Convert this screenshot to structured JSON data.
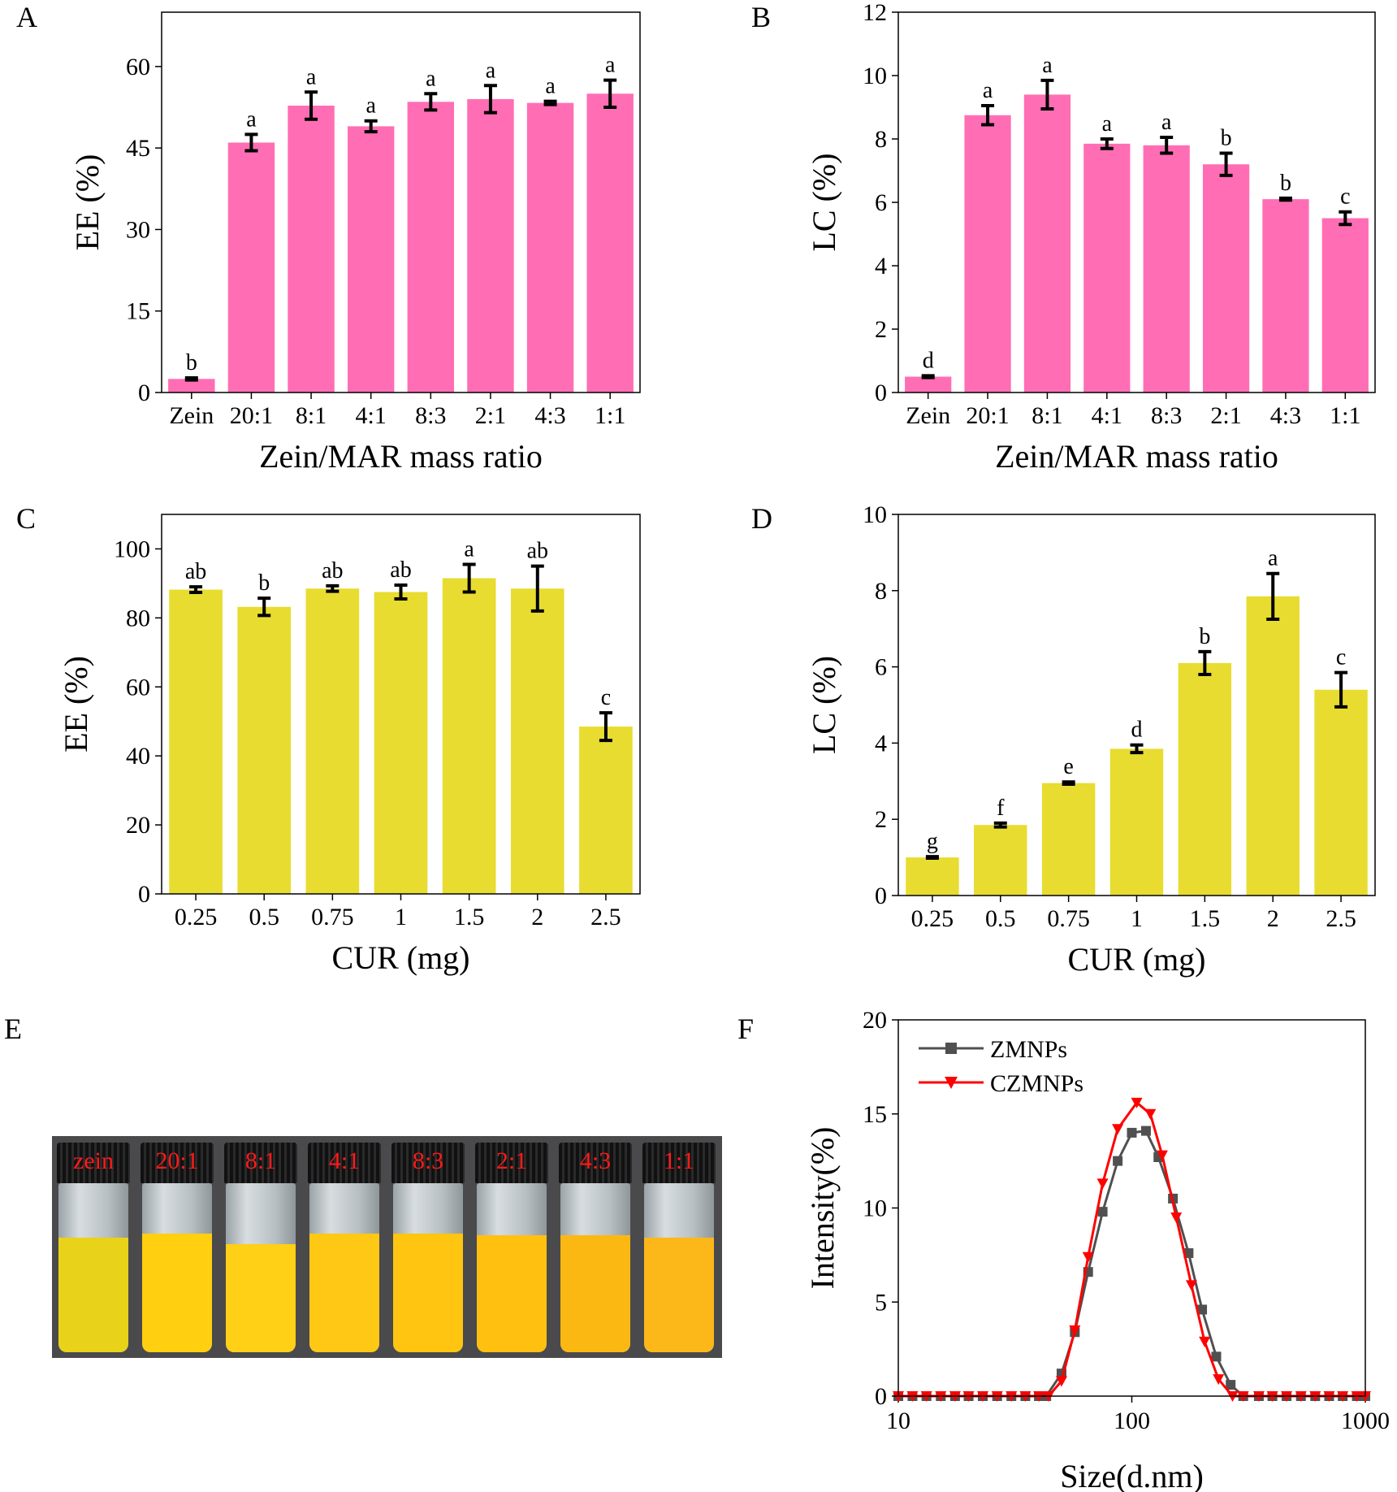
{
  "panels": {
    "A": "A",
    "B": "B",
    "C": "C",
    "D": "D",
    "E": "E",
    "F": "F"
  },
  "colors": {
    "pink": "#ff6eb4",
    "yellow": "#e8dc30",
    "zm": "#505050",
    "czm": "#ff0000"
  },
  "chart_data": [
    {
      "id": "A",
      "type": "bar",
      "ylabel": "EE (%)",
      "xlabel": "Zein/MAR mass ratio",
      "ylim": [
        0,
        70
      ],
      "yticks": [
        0,
        15,
        30,
        45,
        60
      ],
      "categories": [
        "Zein",
        "20:1",
        "8:1",
        "4:1",
        "8:3",
        "2:1",
        "4:3",
        "1:1"
      ],
      "values": [
        2.5,
        46,
        52.8,
        49,
        53.5,
        54,
        53.3,
        55
      ],
      "errors": [
        0.2,
        1.5,
        2.5,
        1,
        1.5,
        2.5,
        0.3,
        2.5
      ],
      "letters": [
        "b",
        "a",
        "a",
        "a",
        "a",
        "a",
        "a",
        "a"
      ],
      "color": "#ff6eb4"
    },
    {
      "id": "B",
      "type": "bar",
      "ylabel": "LC (%)",
      "xlabel": "Zein/MAR mass ratio",
      "ylim": [
        0,
        12
      ],
      "yticks": [
        0,
        2,
        4,
        6,
        8,
        10,
        12
      ],
      "categories": [
        "Zein",
        "20:1",
        "8:1",
        "4:1",
        "8:3",
        "2:1",
        "4:3",
        "1:1"
      ],
      "values": [
        0.5,
        8.75,
        9.4,
        7.85,
        7.8,
        7.2,
        6.1,
        5.5
      ],
      "errors": [
        0.03,
        0.3,
        0.45,
        0.15,
        0.25,
        0.35,
        0.03,
        0.2
      ],
      "letters": [
        "d",
        "a",
        "a",
        "a",
        "a",
        "b",
        "b",
        "c"
      ],
      "color": "#ff6eb4"
    },
    {
      "id": "C",
      "type": "bar",
      "ylabel": "EE (%)",
      "xlabel": "CUR (mg)",
      "ylim": [
        0,
        110
      ],
      "yticks": [
        0,
        20,
        40,
        60,
        80,
        100
      ],
      "categories": [
        "0.25",
        "0.5",
        "0.75",
        "1",
        "1.5",
        "2",
        "2.5"
      ],
      "values": [
        88.2,
        83.2,
        88.5,
        87.5,
        91.5,
        88.5,
        48.5
      ],
      "errors": [
        0.8,
        2.5,
        0.8,
        2,
        4,
        6.5,
        4
      ],
      "letters": [
        "ab",
        "b",
        "ab",
        "ab",
        "a",
        "ab",
        "c"
      ],
      "color": "#e8dc30"
    },
    {
      "id": "D",
      "type": "bar",
      "ylabel": "LC (%)",
      "xlabel": "CUR (mg)",
      "ylim": [
        0,
        10
      ],
      "yticks": [
        0,
        2,
        4,
        6,
        8,
        10
      ],
      "categories": [
        "0.25",
        "0.5",
        "0.75",
        "1",
        "1.5",
        "2",
        "2.5"
      ],
      "values": [
        1,
        1.85,
        2.95,
        3.85,
        6.1,
        7.85,
        5.4
      ],
      "errors": [
        0.02,
        0.05,
        0.03,
        0.1,
        0.3,
        0.6,
        0.45
      ],
      "letters": [
        "g",
        "f",
        "e",
        "d",
        "b",
        "a",
        "c"
      ],
      "color": "#e8dc30"
    },
    {
      "id": "F",
      "type": "line",
      "xscale": "log",
      "xlabel": "Size(d.nm)",
      "ylabel": "Intensity(%)",
      "xlim": [
        10,
        1000
      ],
      "ylim": [
        0,
        20
      ],
      "xticks": [
        10,
        100,
        1000
      ],
      "yticks": [
        0,
        5,
        10,
        15,
        20
      ],
      "legend": "top-left",
      "series": [
        {
          "name": "ZMNPs",
          "color": "#505050",
          "marker": "square",
          "x": [
            10,
            11.5,
            13.2,
            15.2,
            17.5,
            20,
            23,
            26.5,
            30.5,
            35,
            40,
            43,
            50,
            57,
            65,
            75,
            87,
            100,
            115,
            130,
            150,
            175,
            200,
            230,
            265,
            300,
            350,
            400,
            460,
            530,
            610,
            700,
            800,
            920,
            1000
          ],
          "y": [
            0,
            0,
            0,
            0,
            0,
            0,
            0,
            0,
            0,
            0,
            0,
            0,
            1.2,
            3.4,
            6.6,
            9.8,
            12.5,
            14,
            14.1,
            12.7,
            10.5,
            7.6,
            4.6,
            2.1,
            0.6,
            0,
            0,
            0,
            0,
            0,
            0,
            0,
            0,
            0,
            0
          ]
        },
        {
          "name": "CZMNPs",
          "color": "#ff0000",
          "marker": "triangle-down",
          "x": [
            10,
            11.5,
            13.2,
            15.2,
            17.5,
            20,
            23,
            26.5,
            30.5,
            35,
            40,
            44,
            50,
            57,
            65,
            75,
            87,
            105,
            120,
            135,
            155,
            180,
            205,
            235,
            270,
            300,
            350,
            400,
            460,
            530,
            610,
            700,
            800,
            920,
            1000
          ],
          "y": [
            0,
            0,
            0,
            0,
            0,
            0,
            0,
            0,
            0,
            0,
            0,
            0,
            0.8,
            3.5,
            7.4,
            11.3,
            14.2,
            15.6,
            15,
            12.8,
            9.5,
            5.9,
            2.9,
            0.9,
            0,
            0,
            0,
            0,
            0,
            0,
            0,
            0,
            0,
            0,
            0
          ]
        }
      ]
    }
  ],
  "photo": {
    "labels": [
      "zein",
      "20:1",
      "8:1",
      "4:1",
      "8:3",
      "2:1",
      "4:3",
      "1:1"
    ]
  }
}
